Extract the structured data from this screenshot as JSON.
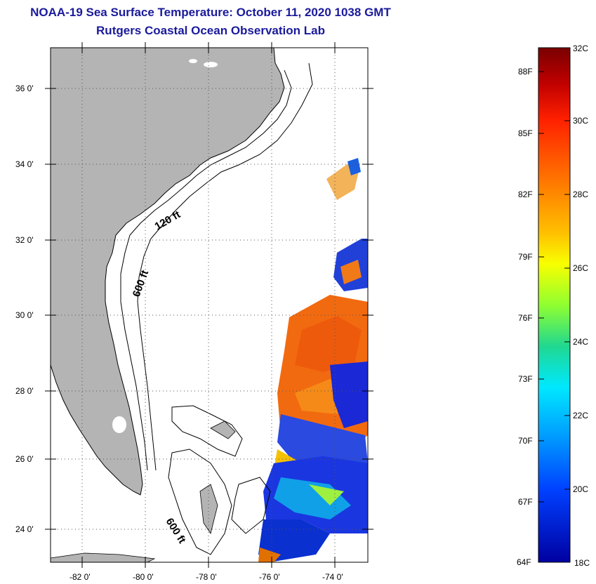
{
  "title": {
    "line1": "NOAA-19 Sea Surface Temperature:  October 11, 2020 1038 GMT",
    "line2": "Rutgers Coastal Ocean Observation Lab"
  },
  "map": {
    "lat_labels": [
      "36 0'",
      "34 0'",
      "32 0'",
      "30 0'",
      "28 0'",
      "26 0'",
      "24 0'"
    ],
    "lon_labels": [
      "-82 0'",
      "-80 0'",
      "-78 0'",
      "-76 0'",
      "-74 0'"
    ],
    "contour_labels": [
      "120 ft",
      "600 ft",
      "600 ft"
    ],
    "colors": {
      "land": "#b4b4b4",
      "warm": "#f06a14",
      "cold": "#1a2ad8",
      "frame": "#000000"
    }
  },
  "colorbar": {
    "f_labels": [
      "88F",
      "85F",
      "82F",
      "79F",
      "76F",
      "73F",
      "70F",
      "67F",
      "64F"
    ],
    "c_labels": [
      "32C",
      "30C",
      "28C",
      "26C",
      "24C",
      "22C",
      "20C",
      "18C"
    ],
    "range_c": [
      18,
      32
    ],
    "palette": [
      "#7a0000",
      "#d60000",
      "#ff3a00",
      "#ff7a00",
      "#ffbe00",
      "#f5ff00",
      "#8cff40",
      "#19d89a",
      "#00e6ff",
      "#009cff",
      "#0038ff",
      "#0000b0"
    ]
  }
}
